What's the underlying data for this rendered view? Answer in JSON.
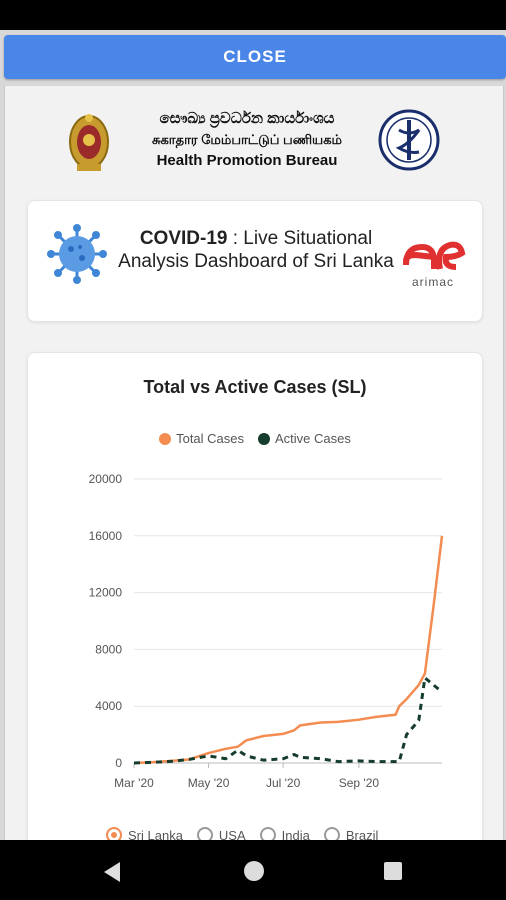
{
  "close_button": {
    "label": "CLOSE"
  },
  "header": {
    "org_sinhala": "සෞඛ්‍ය ප්‍රවර්ධන කාර්යාංශය",
    "org_tamil": "சுகாதார மேம்பாட்டுப் பணியகம்",
    "org_english": "Health Promotion Bureau"
  },
  "dashboard": {
    "title_bold": "COVID-19",
    "title_rest": " : Live Situational Analysis Dashboard of Sri Lanka",
    "partner_logo_text": "arimac"
  },
  "chart_data": {
    "type": "line",
    "title": "Total vs Active Cases (SL)",
    "x": [
      "2020-03-01",
      "2020-03-15",
      "2020-04-01",
      "2020-04-15",
      "2020-05-01",
      "2020-05-15",
      "2020-05-25",
      "2020-06-01",
      "2020-06-15",
      "2020-07-01",
      "2020-07-10",
      "2020-07-15",
      "2020-08-01",
      "2020-08-15",
      "2020-09-01",
      "2020-09-15",
      "2020-10-01",
      "2020-10-04",
      "2020-10-10",
      "2020-10-20",
      "2020-10-25",
      "2020-11-01",
      "2020-11-08"
    ],
    "x_tick_labels": [
      "Mar '20",
      "May '20",
      "Jul '20",
      "Sep '20"
    ],
    "series": [
      {
        "name": "Total Cases",
        "color": "#f48c52",
        "style": "solid",
        "values": [
          0,
          50,
          150,
          250,
          700,
          1000,
          1150,
          1600,
          1900,
          2050,
          2300,
          2650,
          2850,
          2900,
          3050,
          3250,
          3400,
          4000,
          4500,
          5500,
          6300,
          11000,
          16000
        ]
      },
      {
        "name": "Active Cases",
        "color": "#163d2b",
        "style": "dashed",
        "values": [
          0,
          40,
          120,
          250,
          500,
          300,
          900,
          500,
          200,
          300,
          600,
          400,
          300,
          100,
          150,
          100,
          100,
          100,
          2000,
          3000,
          6000,
          5500,
          5000
        ]
      }
    ],
    "ylim": [
      0,
      20000
    ],
    "y_ticks": [
      0,
      4000,
      8000,
      12000,
      16000,
      20000
    ],
    "grid": true,
    "legend_position": "top-center"
  },
  "country_filter": {
    "options": [
      "Sri Lanka",
      "USA",
      "India",
      "Brazil"
    ],
    "selected": "Sri Lanka"
  },
  "colors": {
    "accent": "#4a86e8",
    "orange": "#f48c52",
    "dark_green": "#163d2b"
  }
}
